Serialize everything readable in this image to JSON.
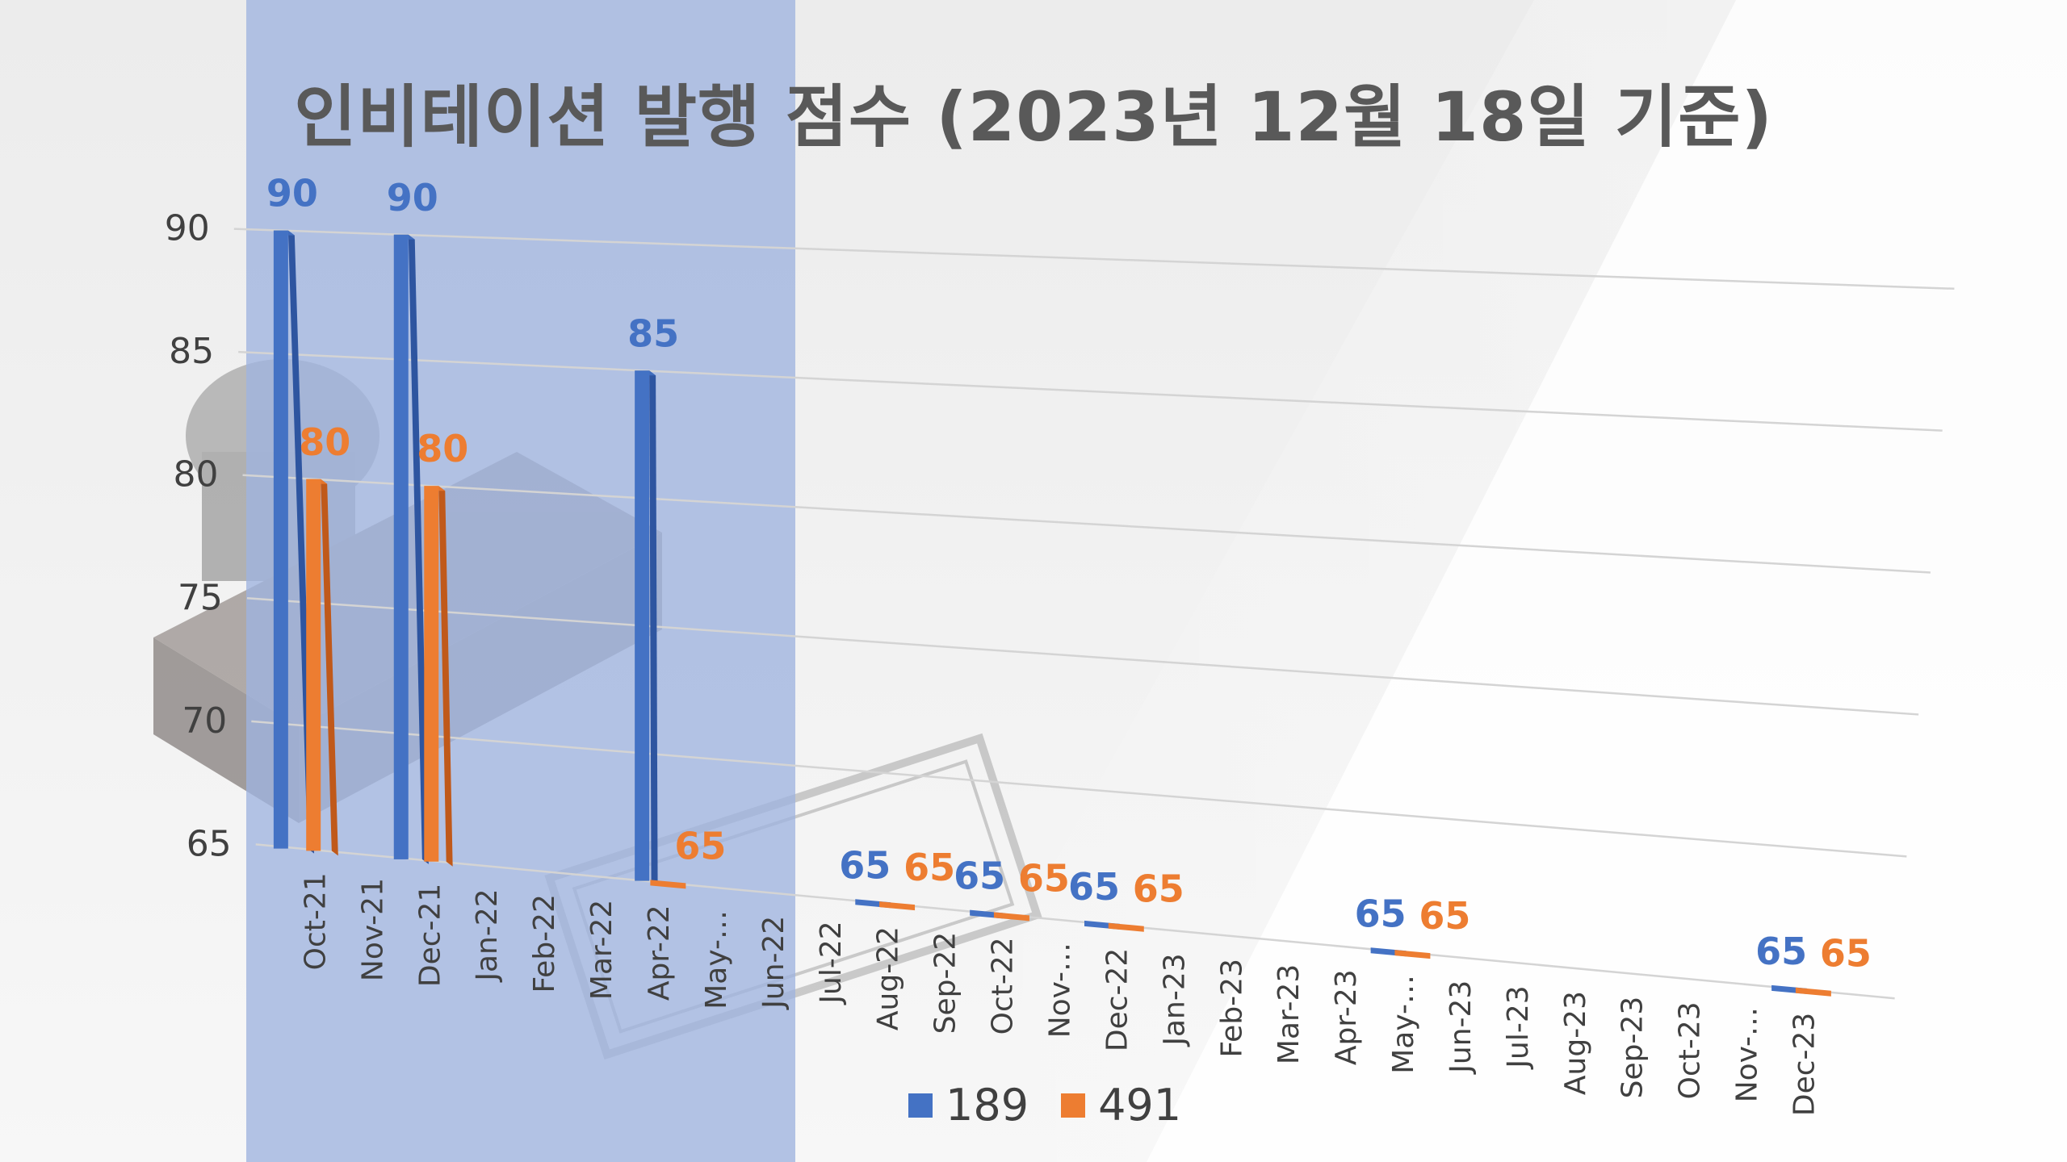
{
  "colors": {
    "series_189": "#4472C4",
    "series_491": "#ED7D31",
    "panel": "#b3c3e4",
    "gridline": "#d4d4d4"
  },
  "chart_data": {
    "type": "bar",
    "title": "인비테이션 발행 점수 (2023년 12월 18일 기준)",
    "xlabel": "",
    "ylabel": "",
    "ylim": [
      65,
      90
    ],
    "yticks": [
      65,
      70,
      75,
      80,
      85,
      90
    ],
    "categories": [
      "Oct-21",
      "Nov-21",
      "Dec-21",
      "Jan-22",
      "Feb-22",
      "Mar-22",
      "Apr-22",
      "May-…",
      "Jun-22",
      "Jul-22",
      "Aug-22",
      "Sep-22",
      "Oct-22",
      "Nov-…",
      "Dec-22",
      "Jan-23",
      "Feb-23",
      "Mar-23",
      "Apr-23",
      "May-…",
      "Jun-23",
      "Jul-23",
      "Aug-23",
      "Sep-23",
      "Oct-23",
      "Nov-…",
      "Dec-23"
    ],
    "series": [
      {
        "name": "189",
        "values": [
          90,
          null,
          90,
          null,
          null,
          null,
          85,
          null,
          null,
          null,
          65,
          null,
          65,
          null,
          65,
          null,
          null,
          null,
          null,
          65,
          null,
          null,
          null,
          null,
          null,
          null,
          65
        ]
      },
      {
        "name": "491",
        "values": [
          80,
          null,
          80,
          null,
          null,
          null,
          65,
          null,
          null,
          null,
          65,
          null,
          65,
          null,
          65,
          null,
          null,
          null,
          null,
          65,
          null,
          null,
          null,
          null,
          null,
          null,
          65
        ]
      }
    ],
    "grid": true,
    "legend_position": "bottom"
  }
}
